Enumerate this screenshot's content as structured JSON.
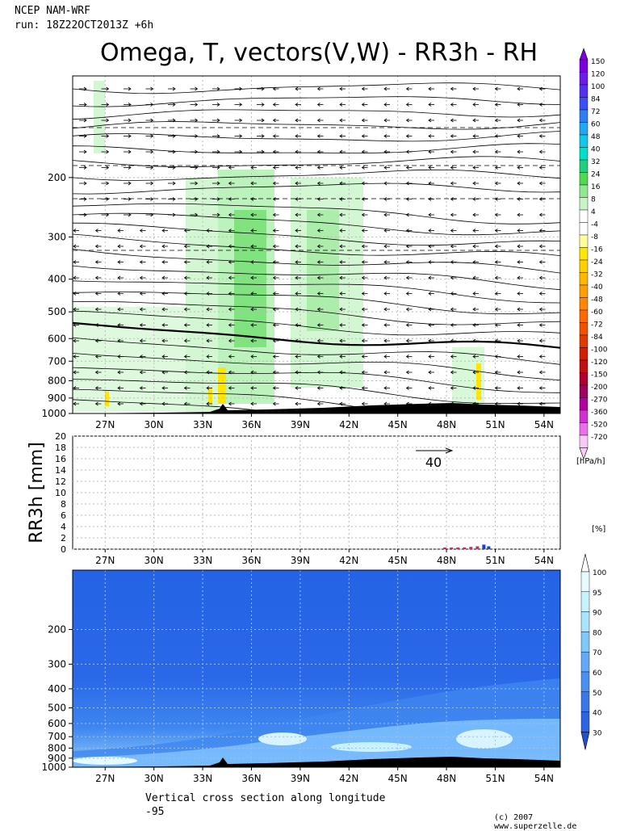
{
  "header": {
    "model": "NCEP NAM-WRF",
    "run": "run: 18Z22OCT2013Z +6h",
    "title": "Omega, T, vectors(V,W) - RR3h - RH"
  },
  "footer": {
    "caption_line1": "Vertical cross section along longitude",
    "caption_line2": "-95",
    "copyright": "(c) 2007 www.superzelle.de"
  },
  "colors": {
    "rh_dark": "#1e5fe0",
    "rh_mid": "#2f7ff0",
    "rh_light": "#7fc2ff",
    "rh_pale": "#d8f4ff",
    "omega_green": "#57d957",
    "omega_yellow": "#ffe600",
    "terrain": "#000000"
  },
  "chart_data": [
    {
      "type": "heatmap",
      "title": "Omega, T, vectors(V,W)",
      "x_ticks": [
        "27N",
        "30N",
        "33N",
        "36N",
        "39N",
        "42N",
        "45N",
        "48N",
        "51N",
        "54N"
      ],
      "x_values": [
        27,
        30,
        33,
        36,
        39,
        42,
        45,
        48,
        51,
        54
      ],
      "xlim": [
        25.0,
        55.0
      ],
      "y_ticks": [
        200,
        300,
        400,
        500,
        600,
        700,
        800,
        900,
        1000
      ],
      "ylim": [
        1000,
        100
      ],
      "y_scale": "log",
      "grid": true,
      "colorbar_unit": "[hPa/h]",
      "colorbar_levels": [
        "150",
        "120",
        "100",
        "84",
        "72",
        "60",
        "48",
        "40",
        "32",
        "24",
        "16",
        "8",
        "4",
        "-4",
        "-8",
        "-16",
        "-24",
        "-32",
        "-40",
        "-48",
        "-60",
        "-72",
        "-84",
        "-100",
        "-120",
        "-150",
        "-200",
        "-270",
        "-360",
        "-520",
        "-720"
      ],
      "colorbar_colors": [
        "#7a00e0",
        "#6a1ce8",
        "#5530f0",
        "#3a50f5",
        "#2f7ff0",
        "#20a8f0",
        "#10c8e8",
        "#00e0c8",
        "#20d080",
        "#50d850",
        "#90e890",
        "#c8f5c8",
        "#ffffff",
        "#ffffff",
        "#ffff99",
        "#ffe600",
        "#ffd000",
        "#ffb800",
        "#ffa000",
        "#ff8800",
        "#ff6a00",
        "#f05000",
        "#e03a00",
        "#d02000",
        "#c01010",
        "#b00030",
        "#a00060",
        "#b000a0",
        "#d030d0",
        "#e870e8",
        "#f8c8f8"
      ],
      "vector_label": "40"
    },
    {
      "type": "bar",
      "ylabel": "RR3h [mm]",
      "x_ticks": [
        "27N",
        "30N",
        "33N",
        "36N",
        "39N",
        "42N",
        "45N",
        "48N",
        "51N",
        "54N"
      ],
      "xlim": [
        25.0,
        55.0
      ],
      "y_ticks": [
        0,
        2,
        4,
        6,
        8,
        10,
        12,
        14,
        16,
        18,
        20
      ],
      "ylim": [
        0,
        20
      ],
      "grid": true,
      "x": [
        47.9,
        48.3,
        48.7,
        49.1,
        49.5,
        49.9,
        50.3,
        50.6
      ],
      "values": [
        0.3,
        0.3,
        0.3,
        0.3,
        0.4,
        0.5,
        0.8,
        0.5
      ]
    },
    {
      "type": "heatmap",
      "title": "RH",
      "x_ticks": [
        "27N",
        "30N",
        "33N",
        "36N",
        "39N",
        "42N",
        "45N",
        "48N",
        "51N",
        "54N"
      ],
      "xlim": [
        25.0,
        55.0
      ],
      "y_ticks": [
        200,
        300,
        400,
        500,
        600,
        700,
        800,
        900,
        1000
      ],
      "ylim": [
        1000,
        100
      ],
      "y_scale": "log",
      "grid": true,
      "colorbar_unit": "[%]",
      "colorbar_levels": [
        "100",
        "95",
        "90",
        "80",
        "70",
        "60",
        "50",
        "40",
        "30"
      ],
      "colorbar_colors": [
        "#e6fbff",
        "#c8f2ff",
        "#a8e4ff",
        "#7fc8fb",
        "#62aaf5",
        "#4a90ee",
        "#3a78e8",
        "#2e64e2",
        "#1e50d0"
      ]
    }
  ]
}
